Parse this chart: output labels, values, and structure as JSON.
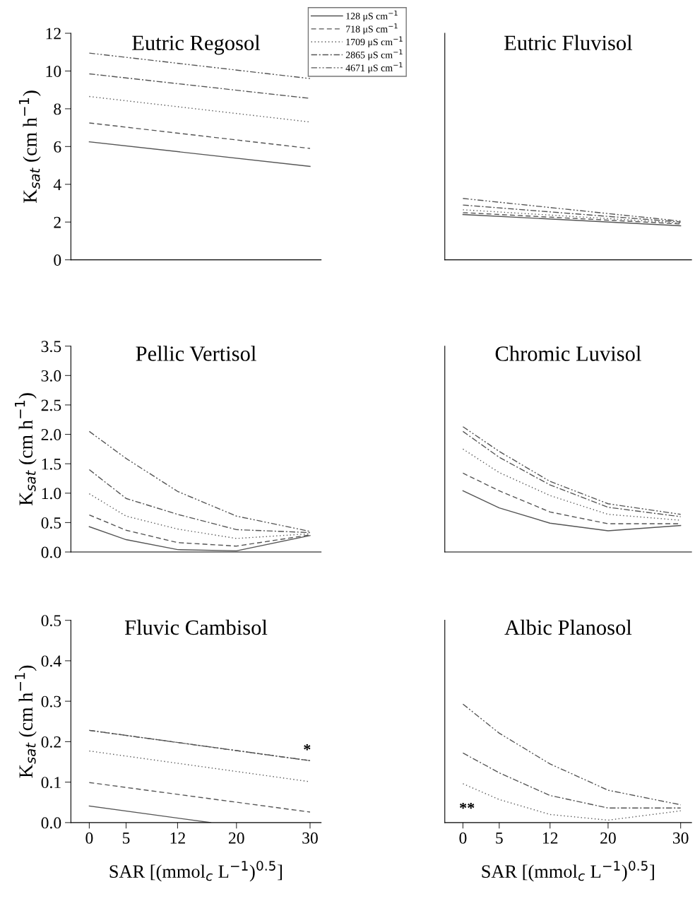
{
  "chart_data": [
    {
      "type": "line",
      "title": "Eutric Regosol",
      "ylabel": "K$_{sat}$ (cm h$^{−1}$)",
      "xlim": [
        -2.5,
        31.5
      ],
      "ylim": [
        0,
        12
      ],
      "yticks": [
        0,
        2,
        4,
        6,
        8,
        10,
        12
      ],
      "tick_labels": "y",
      "legend": "top right",
      "grid": false,
      "series": [
        {
          "name": "128 μS cm$^{−1}$",
          "color": "#555555",
          "line_style": "solid",
          "x": [
            0,
            30
          ],
          "values": [
            6.25,
            4.95
          ]
        },
        {
          "name": "718 μS cm$^{−1}$",
          "color": "#555555",
          "line_style": "dashed",
          "x": [
            0,
            30
          ],
          "values": [
            7.25,
            5.9
          ]
        },
        {
          "name": "1709 μS cm$^{−1}$",
          "color": "#555555",
          "line_style": "dotted",
          "x": [
            0,
            30
          ],
          "values": [
            8.65,
            7.3
          ]
        },
        {
          "name": "2865 μS cm$^{−1}$",
          "color": "#555555",
          "line_style": "dashdot",
          "x": [
            0,
            30
          ],
          "values": [
            9.85,
            8.55
          ]
        },
        {
          "name": "4671 μS cm$^{−1}$",
          "color": "#555555",
          "line_style": "dashdotdot",
          "x": [
            0,
            30
          ],
          "values": [
            10.95,
            9.6
          ]
        }
      ]
    },
    {
      "type": "line",
      "title": "Eutric Fluvisol",
      "xlim": [
        -2.5,
        31.5
      ],
      "ylim": [
        0,
        12
      ],
      "tick_labels": false,
      "grid": false,
      "series": [
        {
          "color": "#555555",
          "line_style": "solid",
          "x": [
            0,
            30
          ],
          "values": [
            2.4,
            1.8
          ]
        },
        {
          "color": "#555555",
          "line_style": "dashed",
          "x": [
            0,
            30
          ],
          "values": [
            2.5,
            1.9
          ]
        },
        {
          "color": "#555555",
          "line_style": "dotted",
          "x": [
            0,
            30
          ],
          "values": [
            2.65,
            1.95
          ]
        },
        {
          "color": "#555555",
          "line_style": "dashdot",
          "x": [
            0,
            30
          ],
          "values": [
            2.9,
            2.0
          ]
        },
        {
          "color": "#555555",
          "line_style": "dashdotdot",
          "x": [
            0,
            30
          ],
          "values": [
            3.25,
            2.05
          ]
        }
      ]
    },
    {
      "type": "line",
      "title": "Pellic Vertisol",
      "ylabel": "K$_{sat}$ (cm h$^{−1}$)",
      "xlim": [
        -2.5,
        31.5
      ],
      "ylim": [
        0,
        3.5
      ],
      "yticks": [
        {
          "value": 0,
          "label": "0.0"
        },
        0.5,
        {
          "value": 1,
          "label": "1.0"
        },
        1.5,
        {
          "value": 2,
          "label": "2.0"
        },
        2.5,
        {
          "value": 3,
          "label": "3.0"
        },
        3.5
      ],
      "tick_labels": "y",
      "grid": false,
      "x": [
        0,
        5,
        12,
        20,
        30
      ],
      "series": [
        {
          "color": "#555555",
          "line_style": "solid",
          "values": [
            0.43,
            0.21,
            0.04,
            0.02,
            0.28
          ]
        },
        {
          "color": "#555555",
          "line_style": "dashed",
          "values": [
            0.63,
            0.37,
            0.16,
            0.1,
            0.29
          ]
        },
        {
          "color": "#555555",
          "line_style": "dotted",
          "values": [
            0.99,
            0.61,
            0.39,
            0.23,
            0.31
          ]
        },
        {
          "color": "#555555",
          "line_style": "dashdot",
          "values": [
            1.4,
            0.91,
            0.64,
            0.38,
            0.33
          ]
        },
        {
          "color": "#555555",
          "line_style": "dashdotdot",
          "values": [
            2.05,
            1.59,
            1.03,
            0.61,
            0.35
          ]
        }
      ]
    },
    {
      "type": "line",
      "title": "Chromic Luvisol",
      "xlim": [
        -2.5,
        31.5
      ],
      "ylim": [
        0,
        3.5
      ],
      "tick_labels": false,
      "grid": false,
      "x": [
        0,
        5,
        12,
        20,
        30
      ],
      "series": [
        {
          "color": "#555555",
          "line_style": "solid",
          "values": [
            1.04,
            0.75,
            0.49,
            0.36,
            0.45
          ]
        },
        {
          "color": "#555555",
          "line_style": "dashed",
          "values": [
            1.34,
            1.04,
            0.68,
            0.48,
            0.48
          ]
        },
        {
          "color": "#555555",
          "line_style": "dotted",
          "values": [
            1.75,
            1.35,
            0.96,
            0.64,
            0.54
          ]
        },
        {
          "color": "#555555",
          "line_style": "dashdot",
          "values": [
            2.05,
            1.61,
            1.14,
            0.76,
            0.6
          ]
        },
        {
          "color": "#555555",
          "line_style": "dashdotdot",
          "values": [
            2.13,
            1.71,
            1.2,
            0.82,
            0.64
          ]
        }
      ]
    },
    {
      "type": "line",
      "title": "Fluvic Cambisol",
      "ylabel": "K$_{sat}$ (cm h$^{−1}$)",
      "xlabel": "SAR [(mmol$_{c}$ L$^{−1}$)$^{0.5}$]",
      "xlim": [
        -2.5,
        31.5
      ],
      "xticks": [
        0,
        5,
        12,
        20,
        30
      ],
      "ylim": [
        0,
        0.5
      ],
      "yticks": [
        {
          "value": 0,
          "label": "0.0"
        },
        0.1,
        0.2,
        0.3,
        0.4,
        0.5
      ],
      "grid": false,
      "annotations": [
        {
          "text": "*",
          "x": 30,
          "y": 0.153
        }
      ],
      "series": [
        {
          "color": "#555555",
          "line_style": "solid",
          "x": [
            0,
            16.5
          ],
          "values": [
            0.041,
            0
          ]
        },
        {
          "color": "#555555",
          "line_style": "dashed",
          "x": [
            0,
            30
          ],
          "values": [
            0.099,
            0.026
          ]
        },
        {
          "color": "#555555",
          "line_style": "dotted",
          "x": [
            0,
            30
          ],
          "values": [
            0.177,
            0.101
          ]
        },
        {
          "color": "#555555",
          "line_style": "dashdot",
          "x": [
            0,
            30
          ],
          "values": [
            0.228,
            0.153
          ]
        },
        {
          "color": "#555555",
          "line_style": "dashdotdot",
          "x": [
            0,
            30
          ],
          "values": [
            0.228,
            0.153
          ]
        }
      ]
    },
    {
      "type": "line",
      "title": "Albic Planosol",
      "xlabel": "SAR [(mmol$_{c}$ L$^{−1}$)$^{0.5}$]",
      "xlim": [
        -2.5,
        31.5
      ],
      "xticks": [
        0,
        5,
        12,
        20,
        30
      ],
      "ylim": [
        0,
        0.5
      ],
      "tick_labels": "x",
      "grid": false,
      "annotations": [
        "**"
      ],
      "x": [
        0,
        5,
        12,
        20,
        30
      ],
      "series": [
        {
          "color": "#555555",
          "line_style": "dotted",
          "values": [
            0.096,
            0.057,
            0.02,
            0.006,
            0.029
          ]
        },
        {
          "color": "#555555",
          "line_style": "dashdot",
          "values": [
            0.172,
            0.123,
            0.067,
            0.036,
            0.036
          ]
        },
        {
          "color": "#555555",
          "line_style": "dashdotdot",
          "values": [
            0.293,
            0.221,
            0.145,
            0.08,
            0.044
          ]
        }
      ]
    }
  ]
}
